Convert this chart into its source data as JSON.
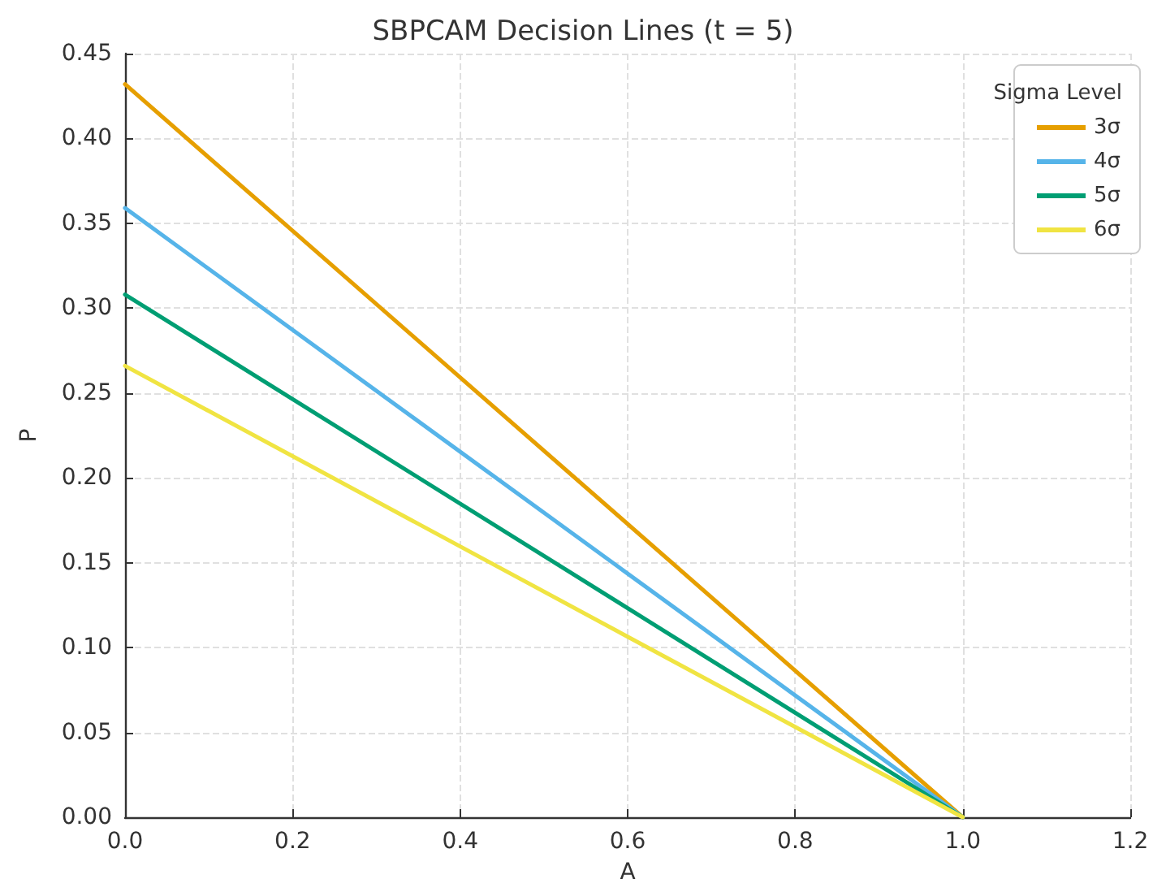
{
  "chart_data": {
    "type": "line",
    "title": "SBPCAM Decision Lines (t = 5)",
    "xlabel": "A",
    "ylabel": "P",
    "legend_title": "Sigma Level",
    "x": [
      0,
      1
    ],
    "series": [
      {
        "name": "3σ",
        "color": "#e69f00",
        "values": [
          0.432,
          0
        ]
      },
      {
        "name": "4σ",
        "color": "#56b4e9",
        "values": [
          0.359,
          0
        ]
      },
      {
        "name": "5σ",
        "color": "#009e73",
        "values": [
          0.308,
          0
        ]
      },
      {
        "name": "6σ",
        "color": "#f0e442",
        "values": [
          0.266,
          0
        ]
      }
    ],
    "xlim": [
      0,
      1.2
    ],
    "xticks": [
      {
        "value": 0,
        "label": "0.0"
      },
      0.2,
      0.4,
      0.6,
      0.8,
      {
        "value": 1,
        "label": "1.0"
      },
      1.2
    ],
    "ylim": [
      0,
      0.45
    ],
    "yticks": [
      {
        "value": 0,
        "label": "0.00"
      },
      0.05,
      {
        "value": 0.1,
        "label": "0.10"
      },
      0.15,
      {
        "value": 0.2,
        "label": "0.20"
      },
      0.25,
      {
        "value": 0.3,
        "label": "0.30"
      },
      0.35,
      {
        "value": 0.4,
        "label": "0.40"
      },
      0.45
    ],
    "grid": true,
    "legend": "top right",
    "marker": "none",
    "line_style": "solid"
  }
}
